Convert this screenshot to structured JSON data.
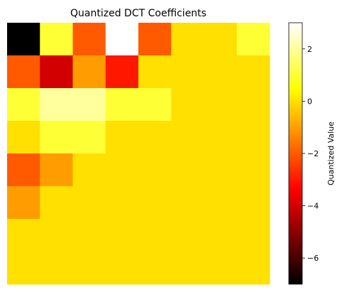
{
  "chart_data": {
    "type": "heatmap",
    "title": "Quantized DCT Coefficients",
    "colormap": "hot",
    "vmin": -7,
    "vmax": 3,
    "axes_visible": false,
    "colorbar": {
      "label": "Quantized Value",
      "ticks": [
        -6,
        -4,
        -2,
        0,
        2
      ],
      "tick_labels": [
        "−6",
        "−4",
        "−2",
        "0",
        "2"
      ]
    },
    "rows": 8,
    "cols": 8,
    "values": [
      [
        -7,
        1,
        -2,
        3,
        -2,
        0,
        0,
        1
      ],
      [
        -2,
        -4,
        -1,
        -3,
        0,
        0,
        0,
        0
      ],
      [
        1,
        2,
        2,
        1,
        1,
        0,
        0,
        0
      ],
      [
        0,
        1,
        1,
        0,
        0,
        0,
        0,
        0
      ],
      [
        -2,
        -1,
        0,
        0,
        0,
        0,
        0,
        0
      ],
      [
        -1,
        0,
        0,
        0,
        0,
        0,
        0,
        0
      ],
      [
        0,
        0,
        0,
        0,
        0,
        0,
        0,
        0
      ],
      [
        0,
        0,
        0,
        0,
        0,
        0,
        0,
        0
      ]
    ]
  }
}
